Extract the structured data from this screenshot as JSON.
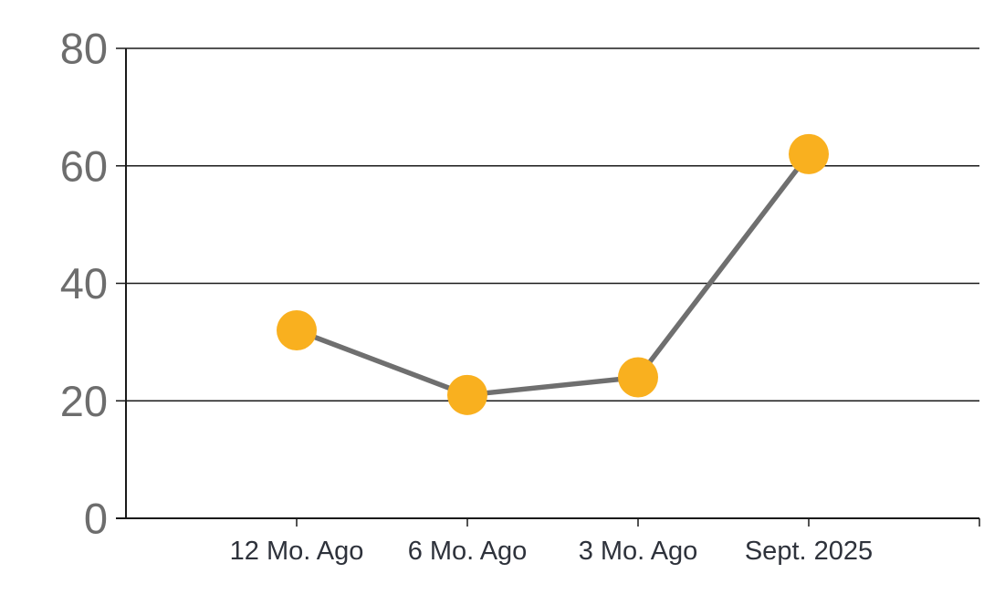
{
  "chart_data": {
    "type": "line",
    "title": "",
    "xlabel": "",
    "ylabel": "",
    "categories": [
      "12 Mo. Ago",
      "6 Mo. Ago",
      "3 Mo. Ago",
      "Sept. 2025"
    ],
    "series": [
      {
        "name": "values",
        "values": [
          32,
          21,
          24,
          62
        ]
      }
    ],
    "ylim": [
      0,
      80
    ],
    "y_ticks": [
      0,
      20,
      40,
      60,
      80
    ],
    "grid": true,
    "legend": false,
    "colors": {
      "marker": "#F9B01F",
      "line": "#6F6F6F",
      "grid_line": "#1A1A1A",
      "axis_line": "#1A1A1A",
      "y_tick_label": "#6D6D6D",
      "x_tick_label": "#2E323B",
      "background": "#FFFFFF"
    }
  }
}
